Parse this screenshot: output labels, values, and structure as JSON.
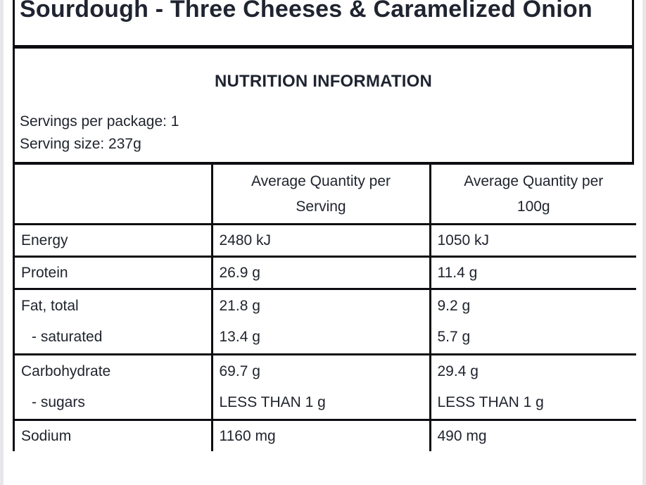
{
  "product": {
    "title": "Sourdough - Three Cheeses & Caramelized Onion"
  },
  "nutrition": {
    "heading": "NUTRITION INFORMATION",
    "servings_per_package": "Servings per package: 1",
    "serving_size": "Serving size: 237g",
    "columns": [
      {
        "line1": "",
        "line2": ""
      },
      {
        "line1": "Average Quantity per",
        "line2": "Serving"
      },
      {
        "line1": "Average Quantity per",
        "line2": "100g"
      }
    ],
    "rows": [
      {
        "label": "Energy",
        "per_serving": "2480 kJ",
        "per_100g": "1050 kJ"
      },
      {
        "label": "Protein",
        "per_serving": "26.9 g",
        "per_100g": "11.4 g"
      },
      {
        "label": "Fat, total",
        "sub_label": "- saturated",
        "per_serving": "21.8 g",
        "sub_per_serving": "13.4 g",
        "per_100g": "9.2 g",
        "sub_per_100g": "5.7 g"
      },
      {
        "label": "Carbohydrate",
        "sub_label": "- sugars",
        "per_serving": "69.7 g",
        "sub_per_serving": "LESS THAN 1 g",
        "per_100g": "29.4 g",
        "sub_per_100g": "LESS THAN 1 g"
      },
      {
        "label": "Sodium",
        "per_serving": "1160 mg",
        "per_100g": "490 mg"
      }
    ]
  },
  "colors": {
    "text": "#20242e",
    "title_text": "#1f2430",
    "border": "#0d0d12",
    "page_background": "#e7e7eb",
    "content_background": "#ffffff"
  }
}
